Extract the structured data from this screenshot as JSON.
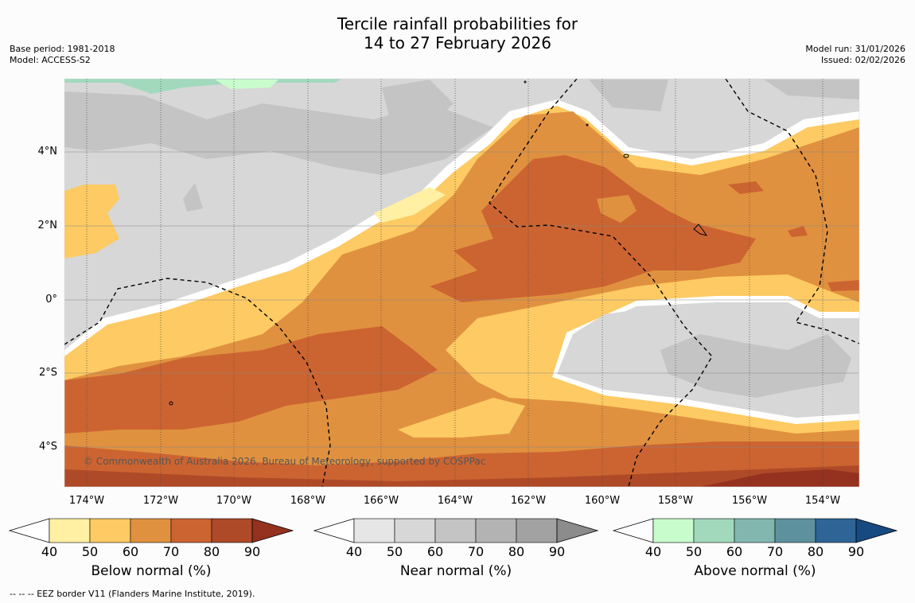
{
  "title": {
    "line1": "Tercile rainfall probabilities for",
    "line2": "14 to 27 February 2026"
  },
  "meta": {
    "base_period": "Base period: 1981-2018",
    "model": "Model: ACCESS-S2",
    "model_run": "Model run: 31/01/2026",
    "issued": "Issued: 02/02/2026"
  },
  "map": {
    "copyright": "© Commonwealth of Australia 2026, Bureau of Meteorology, supported by COSPPac",
    "lat_labels": [
      "4°N",
      "2°N",
      "0°",
      "2°S",
      "4°S"
    ],
    "lon_labels": [
      "174°W",
      "172°W",
      "170°W",
      "168°W",
      "166°W",
      "164°W",
      "162°W",
      "160°W",
      "158°W",
      "156°W",
      "154°W"
    ],
    "lon_range": [
      -174.6,
      -152.9
    ],
    "lat_range": [
      -5.0,
      5.9
    ]
  },
  "colorbars": [
    {
      "label": "Below normal (%)",
      "ticks": [
        "40",
        "50",
        "60",
        "70",
        "80",
        "90"
      ],
      "colors": [
        "#fff0a3",
        "#fdca63",
        "#e0913f",
        "#cc6431",
        "#ae4a28",
        "#94311f"
      ]
    },
    {
      "label": "Near normal (%)",
      "ticks": [
        "40",
        "50",
        "60",
        "70",
        "80",
        "90"
      ],
      "colors": [
        "#e6e6e6",
        "#d7d7d7",
        "#c4c4c4",
        "#b3b3b3",
        "#a2a2a2",
        "#8c8c8c"
      ]
    },
    {
      "label": "Above normal (%)",
      "ticks": [
        "40",
        "50",
        "60",
        "70",
        "80",
        "90"
      ],
      "colors": [
        "#c9fccc",
        "#a2d9bd",
        "#82b7b0",
        "#5e919e",
        "#2f6496",
        "#174a80"
      ]
    }
  ],
  "footer": "--  --  -- EEZ border V11 (Flanders Marine Institute, 2019)."
}
